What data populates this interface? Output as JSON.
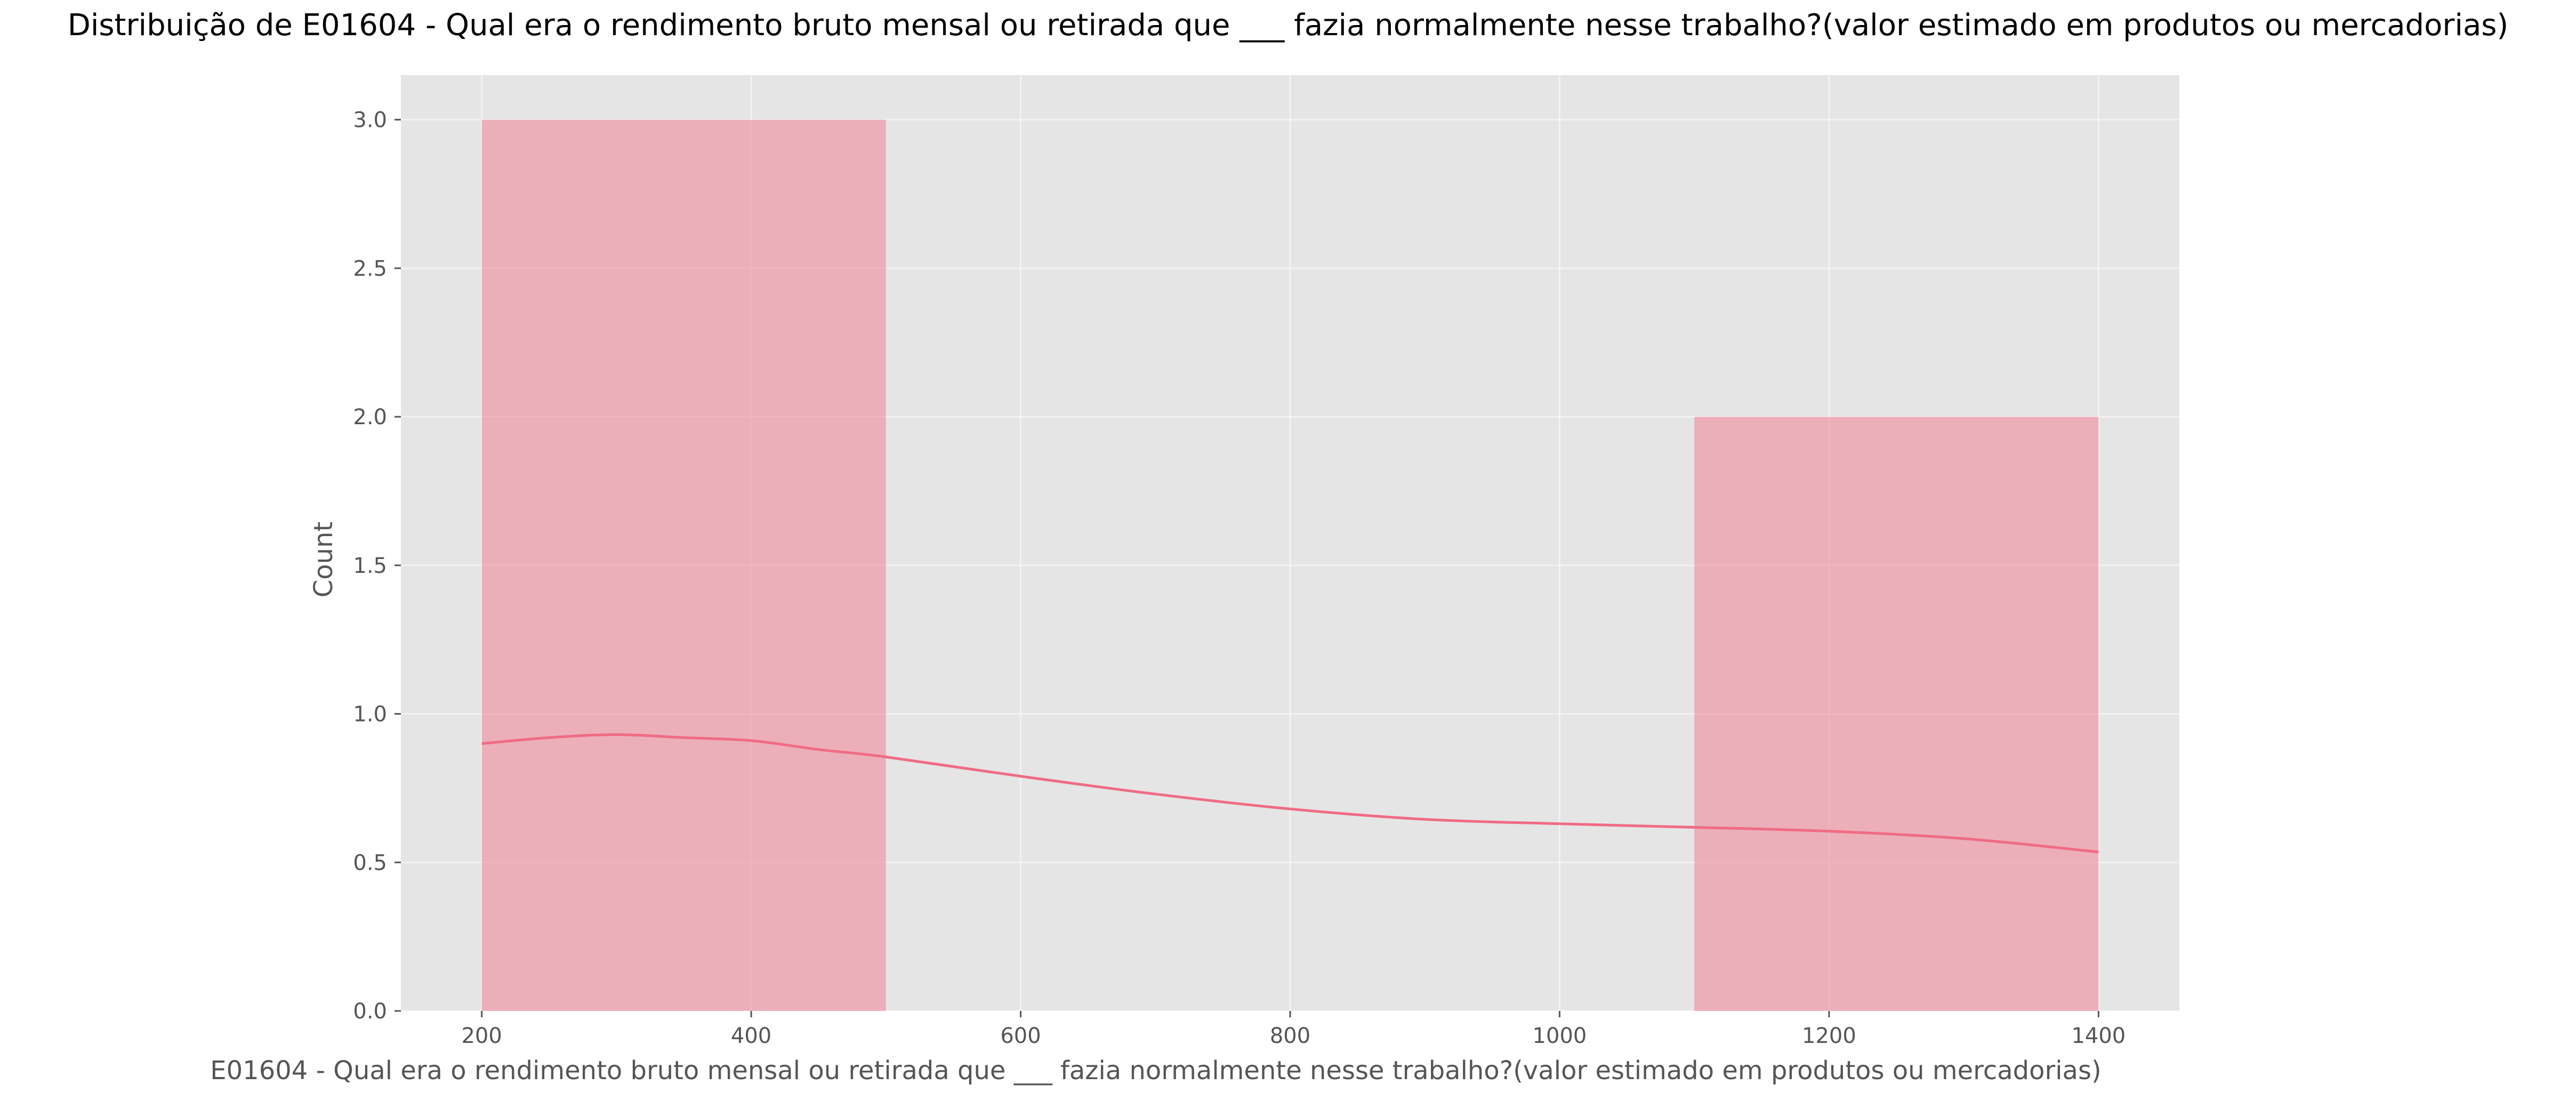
{
  "chart_data": {
    "type": "bar",
    "title": "Distribuição de E01604 - Qual era o rendimento bruto mensal ou retirada que ___ fazia normalmente nesse trabalho?(valor estimado em produtos ou mercadorias)",
    "xlabel": "E01604 - Qual era o rendimento bruto mensal ou retirada que ___ fazia normalmente nesse trabalho?(valor estimado em produtos ou mercadorias)",
    "ylabel": "Count",
    "xlim": [
      140,
      1460
    ],
    "ylim": [
      0,
      3.15
    ],
    "xticks": [
      200,
      400,
      600,
      800,
      1000,
      1200,
      1400
    ],
    "yticks": [
      "0.0",
      "0.5",
      "1.0",
      "1.5",
      "2.0",
      "2.5",
      "3.0"
    ],
    "grid": true,
    "bins": [
      {
        "x0": 200,
        "x1": 500,
        "count": 3
      },
      {
        "x0": 500,
        "x1": 800,
        "count": 0
      },
      {
        "x0": 800,
        "x1": 1100,
        "count": 0
      },
      {
        "x0": 1100,
        "x1": 1400,
        "count": 2
      }
    ],
    "kde": {
      "x": [
        200,
        250,
        300,
        350,
        400,
        450,
        500,
        600,
        700,
        800,
        900,
        1000,
        1100,
        1200,
        1300,
        1400
      ],
      "y": [
        0.9,
        0.92,
        0.93,
        0.92,
        0.91,
        0.88,
        0.855,
        0.79,
        0.73,
        0.68,
        0.645,
        0.63,
        0.618,
        0.605,
        0.58,
        0.535
      ]
    },
    "colors": {
      "bar": "#f08a9c",
      "line": "#f06b84",
      "background": "#e5e5e5"
    }
  }
}
